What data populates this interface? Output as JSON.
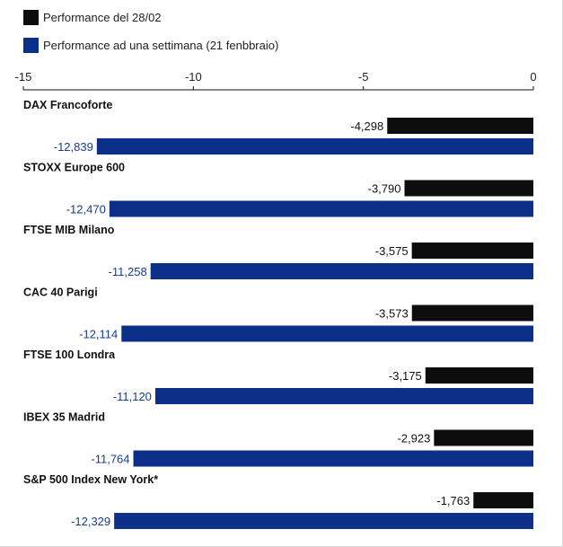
{
  "legend": [
    {
      "label": "Performance del 28/02",
      "color": "#0d0d0d"
    },
    {
      "label": "Performance ad una settimana (21 fenbbraio)",
      "color": "#0c2f8a"
    }
  ],
  "chart_data": {
    "type": "bar",
    "orientation": "horizontal",
    "xlim": [
      -15,
      0
    ],
    "xticks": [
      "-15",
      "-10",
      "-5",
      "0"
    ],
    "grid": false,
    "categories": [
      "DAX Francoforte",
      "STOXX Europe 600",
      "FTSE MIB Milano",
      "CAC 40 Parigi",
      "FTSE 100 Londra",
      "IBEX 35 Madrid",
      "S&P 500 Index New York*"
    ],
    "series": [
      {
        "name": "Performance del 28/02",
        "color": "#0d0d0d",
        "label_color": "#111111",
        "values": [
          -4.298,
          -3.79,
          -3.575,
          -3.573,
          -3.175,
          -2.923,
          -1.763
        ],
        "labels": [
          "-4,298",
          "-3,790",
          "-3,575",
          "-3,573",
          "-3,175",
          "-2,923",
          "-1,763"
        ]
      },
      {
        "name": "Performance ad una settimana (21 fenbbraio)",
        "color": "#0c2f8a",
        "label_color": "#173d8f",
        "values": [
          -12.839,
          -12.47,
          -11.258,
          -12.114,
          -11.12,
          -11.764,
          -12.329
        ],
        "labels": [
          "-12,839",
          "-12,470",
          "-11,258",
          "-12,114",
          "-11,120",
          "-11,764",
          "-12,329"
        ]
      }
    ]
  }
}
